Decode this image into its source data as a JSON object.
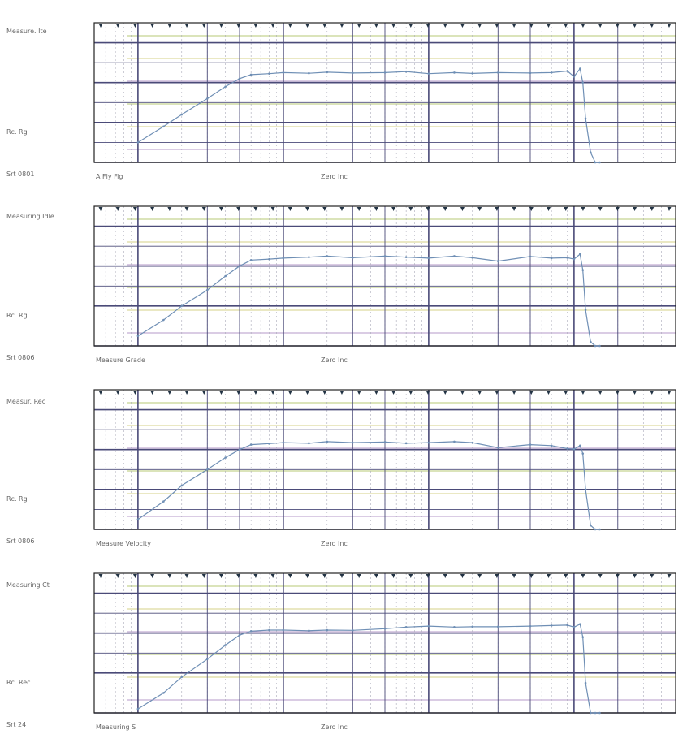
{
  "colors": {
    "background": "#ffffff",
    "major_grid": "#4a4a78",
    "minor_grid": "#a9a9b8",
    "green_line": "#b7c974",
    "yellow_line": "#d6d287",
    "purple_line": "#b49ac8",
    "response_trace": "#6f8fb5",
    "tick_marker": "#223344",
    "label_text": "#7a7a7a"
  },
  "panel_labels": {
    "p1": {
      "side_top": "Measure. Ite",
      "side_block": "Rc. Rg",
      "side_bottom": "Srt 0801",
      "bottom_left": "A Fly Fig",
      "bottom_mid": "Zero Inc"
    },
    "p2": {
      "side_top": "Measuring Idle",
      "side_block": "Rc. Rg",
      "side_bottom": "Srt 0806",
      "bottom_left": "Measure Grade",
      "bottom_mid": "Zero Inc"
    },
    "p3": {
      "side_top": "Measur. Rec",
      "side_block": "Rc. Rg",
      "side_bottom": "Srt 0806",
      "bottom_left": "Measure Velocity",
      "bottom_mid": "Zero Inc"
    },
    "p4": {
      "side_top": "Measuring Ct",
      "side_block": "Rc. Rec",
      "side_bottom": "Srt 24",
      "bottom_left": "Measuring S",
      "bottom_mid": "Zero Inc"
    }
  },
  "chart_data": [
    {
      "type": "line",
      "x_scale": "log",
      "xlim": [
        5,
        50000
      ],
      "ylim": [
        -60,
        10
      ],
      "grid": true,
      "series": [
        {
          "x": [
            10,
            15,
            20,
            30,
            40,
            50,
            60,
            80,
            100,
            150,
            200,
            300,
            500,
            700,
            1000,
            1500,
            2000,
            3000,
            5000,
            7000,
            9000,
            10000,
            11000,
            11500,
            12000,
            13000,
            14000,
            15000
          ],
          "y": [
            -50,
            -42,
            -36,
            -28,
            -22,
            -18,
            -16,
            -15.5,
            -15,
            -15.3,
            -14.8,
            -15.2,
            -15,
            -14.5,
            -15.5,
            -15,
            -15.4,
            -15,
            -15.2,
            -15,
            -14.2,
            -17,
            -13,
            -20,
            -38,
            -55,
            -60,
            -60
          ]
        }
      ]
    },
    {
      "type": "line",
      "x_scale": "log",
      "xlim": [
        5,
        50000
      ],
      "ylim": [
        -60,
        10
      ],
      "grid": true,
      "series": [
        {
          "x": [
            10,
            15,
            20,
            30,
            40,
            50,
            60,
            80,
            100,
            150,
            200,
            300,
            500,
            700,
            1000,
            1500,
            2000,
            3000,
            5000,
            7000,
            9000,
            10000,
            11000,
            11500,
            12000,
            13000,
            14000,
            15000
          ],
          "y": [
            -55,
            -47,
            -40,
            -32,
            -25,
            -20,
            -17,
            -16.5,
            -16,
            -15.5,
            -15,
            -15.8,
            -15,
            -15.5,
            -16,
            -15,
            -15.8,
            -17.5,
            -15.2,
            -16,
            -15.8,
            -16.5,
            -14,
            -22,
            -42,
            -58,
            -60,
            -60
          ]
        }
      ]
    },
    {
      "type": "line",
      "x_scale": "log",
      "xlim": [
        5,
        50000
      ],
      "ylim": [
        -60,
        10
      ],
      "grid": true,
      "series": [
        {
          "x": [
            10,
            15,
            20,
            30,
            40,
            50,
            60,
            80,
            100,
            150,
            200,
            300,
            500,
            700,
            1000,
            1500,
            2000,
            3000,
            5000,
            7000,
            9000,
            10000,
            11000,
            11500,
            12000,
            13000,
            14000,
            15000
          ],
          "y": [
            -55,
            -46,
            -38,
            -30,
            -24,
            -20,
            -17.5,
            -17,
            -16.5,
            -16.8,
            -16,
            -16.5,
            -16.2,
            -16.8,
            -16.5,
            -16,
            -16.5,
            -19,
            -17.5,
            -18,
            -19.5,
            -19.8,
            -18,
            -22,
            -40,
            -58,
            -60,
            -60
          ]
        }
      ]
    },
    {
      "type": "line",
      "x_scale": "log",
      "xlim": [
        5,
        50000
      ],
      "ylim": [
        -60,
        10
      ],
      "grid": true,
      "series": [
        {
          "x": [
            10,
            15,
            20,
            30,
            40,
            50,
            60,
            80,
            100,
            150,
            200,
            300,
            500,
            700,
            1000,
            1500,
            2000,
            3000,
            5000,
            7000,
            9000,
            10000,
            11000,
            11500,
            12000,
            13000,
            14000,
            15000
          ],
          "y": [
            -58,
            -50,
            -42,
            -33,
            -26,
            -21,
            -19,
            -18.5,
            -18.5,
            -18.8,
            -18.5,
            -18.6,
            -17.8,
            -17,
            -16.5,
            -17,
            -16.8,
            -16.8,
            -16.5,
            -16.2,
            -16,
            -17,
            -15.5,
            -22,
            -45,
            -60,
            -60,
            -60
          ]
        }
      ]
    }
  ]
}
